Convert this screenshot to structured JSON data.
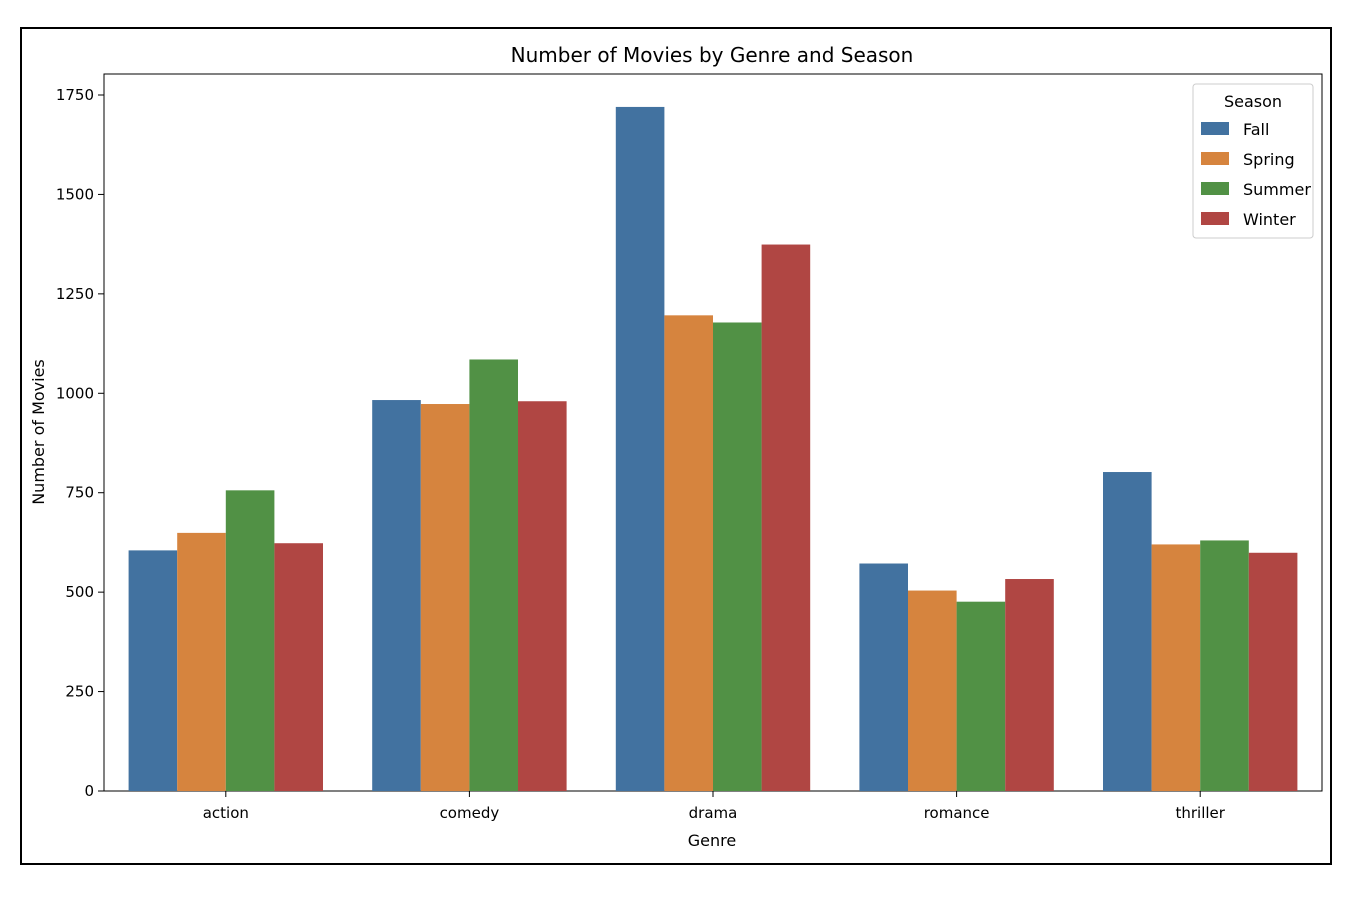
{
  "chart_data": {
    "type": "bar",
    "title": "Number of Movies by Genre and Season",
    "xlabel": "Genre",
    "ylabel": "Number of Movies",
    "categories": [
      "action",
      "comedy",
      "drama",
      "romance",
      "thriller"
    ],
    "ylim": [
      0,
      1750
    ],
    "yticks": [
      0,
      250,
      500,
      750,
      1000,
      1250,
      1500,
      1750
    ],
    "legend": {
      "title": "Season",
      "placement": "top-right"
    },
    "grid": false,
    "series": [
      {
        "name": "Fall",
        "color": "#4272a0",
        "values": [
          605,
          983,
          1720,
          572,
          802
        ]
      },
      {
        "name": "Spring",
        "color": "#d6843e",
        "values": [
          649,
          973,
          1196,
          504,
          620
        ]
      },
      {
        "name": "Summer",
        "color": "#519145",
        "values": [
          756,
          1085,
          1178,
          476,
          630
        ]
      },
      {
        "name": "Winter",
        "color": "#b04643",
        "values": [
          623,
          980,
          1374,
          533,
          599
        ]
      }
    ]
  }
}
